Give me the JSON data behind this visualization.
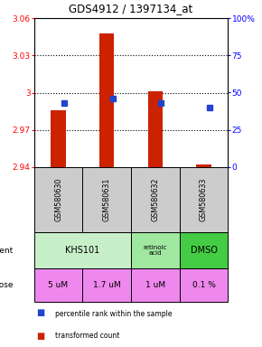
{
  "title": "GDS4912 / 1397134_at",
  "samples": [
    "GSM580630",
    "GSM580631",
    "GSM580632",
    "GSM580633"
  ],
  "red_values": [
    2.986,
    3.048,
    3.001,
    2.942
  ],
  "blue_values_pct": [
    43,
    46,
    43,
    40
  ],
  "ylim_left": [
    2.94,
    3.06
  ],
  "ylim_right": [
    0,
    100
  ],
  "yticks_left": [
    2.94,
    2.97,
    3.0,
    3.03,
    3.06
  ],
  "yticks_right": [
    0,
    25,
    50,
    75,
    100
  ],
  "ytick_labels_left": [
    "2.94",
    "2.97",
    "3",
    "3.03",
    "3.06"
  ],
  "ytick_labels_right": [
    "0",
    "25",
    "50",
    "75",
    "100%"
  ],
  "hlines": [
    3.03,
    3.0,
    2.97
  ],
  "dose_labels": [
    "5 uM",
    "1.7 uM",
    "1 uM",
    "0.1 %"
  ],
  "dose_color": "#ee88ee",
  "sample_bg": "#cccccc",
  "bar_color": "#cc2200",
  "blue_color": "#2244cc",
  "legend_red": "transformed count",
  "legend_blue": "percentile rank within the sample",
  "bar_bottom": 2.94,
  "khs101_color": "#c8f0c8",
  "retinoic_color": "#a0e8a0",
  "dmso_color": "#44cc44"
}
